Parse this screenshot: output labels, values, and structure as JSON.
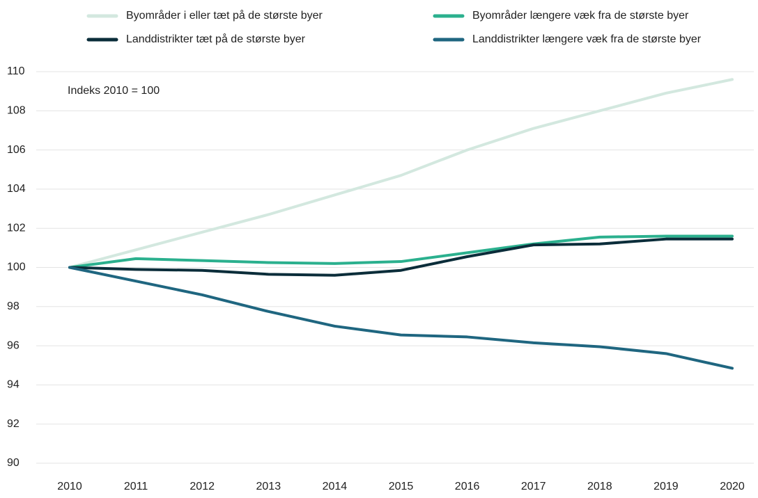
{
  "chart_data": {
    "type": "line",
    "annotation": "Indeks 2010 = 100",
    "categories": [
      "2010",
      "2011",
      "2012",
      "2013",
      "2014",
      "2015",
      "2016",
      "2017",
      "2018",
      "2019",
      "2020"
    ],
    "series": [
      {
        "name": "Byområder i eller tæt på de største byer",
        "color": "#d3e8df",
        "values": [
          100,
          100.9,
          101.8,
          102.7,
          103.7,
          104.7,
          106.0,
          107.1,
          108.0,
          108.9,
          109.6
        ]
      },
      {
        "name": "Byområder længere væk fra de største byer",
        "color": "#2bb08e",
        "values": [
          100,
          100.45,
          100.35,
          100.25,
          100.2,
          100.3,
          100.75,
          101.2,
          101.55,
          101.6,
          101.6
        ]
      },
      {
        "name": "Landdistrikter tæt på de største byer",
        "color": "#0b2d3a",
        "values": [
          100,
          99.9,
          99.85,
          99.65,
          99.6,
          99.85,
          100.55,
          101.15,
          101.2,
          101.45,
          101.45
        ]
      },
      {
        "name": "Landdistrikter længere væk fra de største byer",
        "color": "#1f6680",
        "values": [
          100,
          99.3,
          98.6,
          97.75,
          97.0,
          96.55,
          96.45,
          96.15,
          95.95,
          95.6,
          94.85
        ]
      }
    ],
    "ylim": [
      90,
      110
    ],
    "yticks": [
      90,
      92,
      94,
      96,
      98,
      100,
      102,
      104,
      106,
      108,
      110
    ],
    "grid": true
  }
}
